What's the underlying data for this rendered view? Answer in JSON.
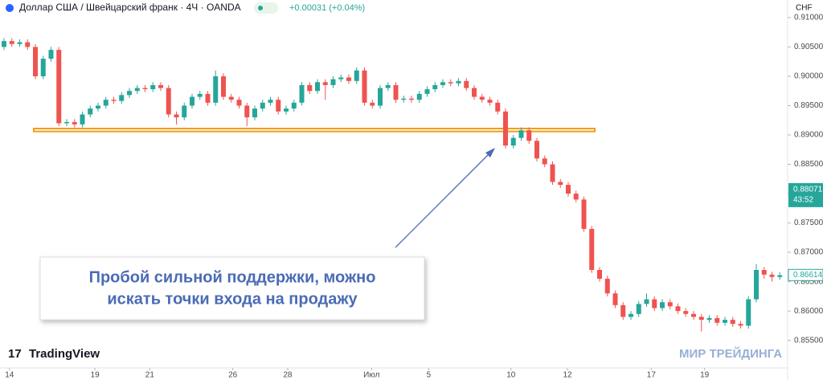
{
  "header": {
    "symbol": "Доллар США / Швейцарский франк · 4Ч · OANDA",
    "change": "+0.00031 (+0.04%)",
    "currency": "CHF",
    "countdown": "43:52"
  },
  "chart_data": {
    "type": "candlestick",
    "up_color": "#26a69a",
    "down_color": "#ef5350",
    "ylim": [
      0.8503,
      0.913
    ],
    "yticks": [
      {
        "value": 0.855,
        "label": "0.85500"
      },
      {
        "value": 0.86,
        "label": "0.86000"
      },
      {
        "value": 0.865,
        "label": "0.86500"
      },
      {
        "value": 0.87,
        "label": "0.87000"
      },
      {
        "value": 0.875,
        "label": "0.87500"
      },
      {
        "value": 0.88,
        "label": "0.88000"
      },
      {
        "value": 0.885,
        "label": "0.88500"
      },
      {
        "value": 0.89,
        "label": "0.89000"
      },
      {
        "value": 0.895,
        "label": "0.89500"
      },
      {
        "value": 0.9,
        "label": "0.90000"
      },
      {
        "value": 0.905,
        "label": "0.90500"
      },
      {
        "value": 0.91,
        "label": "0.91000"
      }
    ],
    "xticks": [
      {
        "value": 0.7,
        "label": "14"
      },
      {
        "value": 11.6,
        "label": "19"
      },
      {
        "value": 18.6,
        "label": "21"
      },
      {
        "value": 29.2,
        "label": "26"
      },
      {
        "value": 36.2,
        "label": "28"
      },
      {
        "value": 46.9,
        "label": "Июл"
      },
      {
        "value": 54.2,
        "label": "5"
      },
      {
        "value": 64.7,
        "label": "10"
      },
      {
        "value": 71.9,
        "label": "12"
      },
      {
        "value": 82.6,
        "label": "17"
      },
      {
        "value": 89.4,
        "label": "19"
      }
    ],
    "open": [
      0.905,
      0.906,
      0.9055,
      0.9058,
      0.905,
      0.9,
      0.903,
      0.9045,
      0.892,
      0.8922,
      0.8918,
      0.8935,
      0.8945,
      0.895,
      0.896,
      0.8958,
      0.8968,
      0.8975,
      0.898,
      0.8978,
      0.8985,
      0.898,
      0.8935,
      0.893,
      0.895,
      0.8965,
      0.897,
      0.8955,
      0.9,
      0.8965,
      0.896,
      0.895,
      0.893,
      0.8945,
      0.8955,
      0.896,
      0.894,
      0.8945,
      0.8955,
      0.8985,
      0.8975,
      0.899,
      0.8985,
      0.8995,
      0.8998,
      0.8992,
      0.901,
      0.8955,
      0.895,
      0.898,
      0.8985,
      0.896,
      0.8962,
      0.896,
      0.897,
      0.8978,
      0.8985,
      0.899,
      0.8988,
      0.8992,
      0.898,
      0.8965,
      0.896,
      0.8955,
      0.894,
      0.8882,
      0.8895,
      0.8908,
      0.889,
      0.886,
      0.885,
      0.882,
      0.8815,
      0.88,
      0.879,
      0.874,
      0.867,
      0.8655,
      0.863,
      0.861,
      0.859,
      0.8595,
      0.8612,
      0.862,
      0.8605,
      0.8615,
      0.8608,
      0.86,
      0.8595,
      0.859,
      0.8585,
      0.8588,
      0.858,
      0.8585,
      0.8578,
      0.8575,
      0.862,
      0.867,
      0.8662,
      0.8658
    ],
    "high": [
      0.9065,
      0.9065,
      0.9063,
      0.9063,
      0.9055,
      0.9035,
      0.905,
      0.905,
      0.8927,
      0.8927,
      0.894,
      0.895,
      0.8955,
      0.8965,
      0.8965,
      0.8973,
      0.898,
      0.8985,
      0.8985,
      0.899,
      0.899,
      0.8985,
      0.894,
      0.8955,
      0.897,
      0.8975,
      0.8975,
      0.901,
      0.9005,
      0.897,
      0.8965,
      0.8955,
      0.895,
      0.896,
      0.8965,
      0.8965,
      0.895,
      0.896,
      0.899,
      0.899,
      0.8995,
      0.8995,
      0.9,
      0.9003,
      0.9003,
      0.9015,
      0.9015,
      0.896,
      0.8985,
      0.899,
      0.899,
      0.8967,
      0.8967,
      0.8975,
      0.8983,
      0.899,
      0.8995,
      0.8995,
      0.8997,
      0.8997,
      0.8985,
      0.897,
      0.8965,
      0.896,
      0.8945,
      0.89,
      0.8913,
      0.8913,
      0.8895,
      0.8865,
      0.8855,
      0.8825,
      0.882,
      0.8805,
      0.8795,
      0.8745,
      0.8675,
      0.866,
      0.8635,
      0.8615,
      0.86,
      0.8617,
      0.863,
      0.8625,
      0.862,
      0.862,
      0.8613,
      0.8605,
      0.86,
      0.8595,
      0.8593,
      0.8593,
      0.859,
      0.859,
      0.8583,
      0.8625,
      0.868,
      0.8675,
      0.8667,
      0.8666
    ],
    "low": [
      0.9045,
      0.905,
      0.905,
      0.9045,
      0.8995,
      0.8995,
      0.9025,
      0.8915,
      0.8915,
      0.8913,
      0.8913,
      0.893,
      0.894,
      0.8945,
      0.8953,
      0.8953,
      0.8963,
      0.897,
      0.8973,
      0.8973,
      0.8975,
      0.893,
      0.8918,
      0.8925,
      0.8945,
      0.896,
      0.895,
      0.895,
      0.896,
      0.8955,
      0.8945,
      0.8915,
      0.8925,
      0.894,
      0.895,
      0.8935,
      0.8935,
      0.894,
      0.895,
      0.897,
      0.897,
      0.896,
      0.898,
      0.899,
      0.8987,
      0.8987,
      0.895,
      0.8945,
      0.8945,
      0.8975,
      0.8955,
      0.8955,
      0.8955,
      0.8955,
      0.8965,
      0.8973,
      0.898,
      0.8983,
      0.8983,
      0.8975,
      0.896,
      0.8955,
      0.895,
      0.8935,
      0.8877,
      0.8877,
      0.889,
      0.8885,
      0.8855,
      0.8845,
      0.8815,
      0.881,
      0.8795,
      0.8785,
      0.8735,
      0.8665,
      0.865,
      0.8625,
      0.8605,
      0.8585,
      0.8585,
      0.859,
      0.8607,
      0.86,
      0.86,
      0.8603,
      0.8595,
      0.859,
      0.8585,
      0.8565,
      0.858,
      0.8575,
      0.8575,
      0.8573,
      0.857,
      0.857,
      0.8615,
      0.8655,
      0.865,
      0.8653
    ],
    "close": [
      0.906,
      0.9055,
      0.9058,
      0.905,
      0.9,
      0.903,
      0.9045,
      0.892,
      0.8922,
      0.8918,
      0.8935,
      0.8945,
      0.895,
      0.896,
      0.8958,
      0.8968,
      0.8975,
      0.898,
      0.8978,
      0.8985,
      0.898,
      0.8935,
      0.893,
      0.895,
      0.8965,
      0.897,
      0.8955,
      0.9,
      0.8965,
      0.896,
      0.895,
      0.893,
      0.8945,
      0.8955,
      0.896,
      0.894,
      0.8945,
      0.8955,
      0.8985,
      0.8975,
      0.899,
      0.8985,
      0.8995,
      0.8998,
      0.8992,
      0.901,
      0.8955,
      0.895,
      0.898,
      0.8985,
      0.896,
      0.8962,
      0.896,
      0.897,
      0.8978,
      0.8985,
      0.899,
      0.8988,
      0.8992,
      0.898,
      0.8965,
      0.896,
      0.8955,
      0.894,
      0.8882,
      0.8895,
      0.8908,
      0.889,
      0.886,
      0.885,
      0.882,
      0.8815,
      0.88,
      0.879,
      0.874,
      0.867,
      0.8655,
      0.863,
      0.861,
      0.859,
      0.8595,
      0.8612,
      0.862,
      0.8605,
      0.8615,
      0.8608,
      0.86,
      0.8595,
      0.859,
      0.8585,
      0.8588,
      0.858,
      0.8585,
      0.8578,
      0.8575,
      0.862,
      0.867,
      0.8662,
      0.8658,
      0.8661
    ],
    "support_zone": [
      0.8906,
      0.8911
    ],
    "zone_color": "#f39c12",
    "price_labels": [
      0.88071,
      0.86614
    ],
    "annotation": [
      "Пробой сильной поддержки, можно",
      "искать точки входа на продажу"
    ],
    "logo": "TradingView",
    "brand": "МИР ТРЕЙДИНГА"
  }
}
